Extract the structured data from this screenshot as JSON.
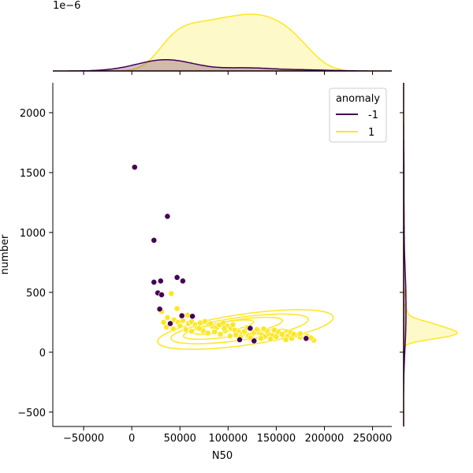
{
  "chart_data": {
    "type": "scatter",
    "xlabel": "N50",
    "ylabel": "number",
    "xlim": [
      -82000,
      270000
    ],
    "ylim": [
      -620,
      2250
    ],
    "xticks": [
      -50000,
      0,
      50000,
      100000,
      150000,
      200000,
      250000
    ],
    "xtick_labels": [
      "−50000",
      "0",
      "50000",
      "100000",
      "150000",
      "200000",
      "250000"
    ],
    "yticks": [
      -500,
      0,
      500,
      1000,
      1500,
      2000
    ],
    "ytick_labels": [
      "−500",
      "0",
      "500",
      "1000",
      "1500",
      "2000"
    ],
    "grid": false,
    "legend": {
      "title": "anomaly",
      "placement": "top-right",
      "entries": [
        {
          "label": "-1",
          "color": "#440154"
        },
        {
          "label": "1",
          "color": "#fde725"
        }
      ]
    },
    "top_axis_offset_label": "1e−6",
    "series": [
      {
        "name": "-1",
        "color": "#440154",
        "points": [
          [
            3000,
            1545
          ],
          [
            37000,
            1135
          ],
          [
            23000,
            935
          ],
          [
            47000,
            625
          ],
          [
            53000,
            595
          ],
          [
            23000,
            585
          ],
          [
            30000,
            595
          ],
          [
            27000,
            495
          ],
          [
            31000,
            480
          ],
          [
            29000,
            360
          ],
          [
            52000,
            305
          ],
          [
            63000,
            300
          ],
          [
            40000,
            240
          ],
          [
            123000,
            200
          ],
          [
            112000,
            105
          ],
          [
            127000,
            95
          ],
          [
            181000,
            115
          ]
        ]
      },
      {
        "name": "1",
        "color": "#fde725",
        "points": [
          [
            41000,
            490
          ],
          [
            47000,
            365
          ],
          [
            31000,
            340
          ],
          [
            37000,
            290
          ],
          [
            44000,
            270
          ],
          [
            48000,
            250
          ],
          [
            53000,
            265
          ],
          [
            59000,
            240
          ],
          [
            62000,
            255
          ],
          [
            66000,
            230
          ],
          [
            71000,
            245
          ],
          [
            76000,
            258
          ],
          [
            80000,
            232
          ],
          [
            84000,
            215
          ],
          [
            88000,
            205
          ],
          [
            91000,
            228
          ],
          [
            95000,
            245
          ],
          [
            99000,
            220
          ],
          [
            103000,
            200
          ],
          [
            107000,
            185
          ],
          [
            111000,
            170
          ],
          [
            114000,
            150
          ],
          [
            118000,
            160
          ],
          [
            121000,
            140
          ],
          [
            125000,
            150
          ],
          [
            128000,
            172
          ],
          [
            132000,
            165
          ],
          [
            135000,
            145
          ],
          [
            138000,
            130
          ],
          [
            142000,
            155
          ],
          [
            146000,
            140
          ],
          [
            150000,
            130
          ],
          [
            154000,
            160
          ],
          [
            158000,
            120
          ],
          [
            162000,
            135
          ],
          [
            166000,
            115
          ],
          [
            170000,
            145
          ],
          [
            175000,
            125
          ],
          [
            182000,
            135
          ],
          [
            189000,
            100
          ],
          [
            36000,
            210
          ],
          [
            43000,
            195
          ],
          [
            50000,
            220
          ],
          [
            56000,
            190
          ],
          [
            62000,
            175
          ],
          [
            68000,
            205
          ],
          [
            74000,
            180
          ],
          [
            79000,
            160
          ],
          [
            86000,
            170
          ],
          [
            92000,
            150
          ],
          [
            97000,
            180
          ],
          [
            102000,
            135
          ],
          [
            108000,
            145
          ],
          [
            113000,
            125
          ],
          [
            117000,
            175
          ],
          [
            123000,
            120
          ],
          [
            127000,
            165
          ],
          [
            134000,
            115
          ],
          [
            140000,
            180
          ],
          [
            144000,
            110
          ],
          [
            152000,
            170
          ],
          [
            160000,
            105
          ],
          [
            165000,
            165
          ],
          [
            33000,
            250
          ],
          [
            58000,
            310
          ],
          [
            70000,
            200
          ],
          [
            82000,
            240
          ],
          [
            96000,
            200
          ],
          [
            105000,
            230
          ],
          [
            120000,
            205
          ],
          [
            130000,
            190
          ],
          [
            137000,
            195
          ],
          [
            148000,
            185
          ],
          [
            156000,
            150
          ],
          [
            168000,
            150
          ],
          [
            175000,
            155
          ],
          [
            186000,
            120
          ]
        ]
      }
    ]
  }
}
